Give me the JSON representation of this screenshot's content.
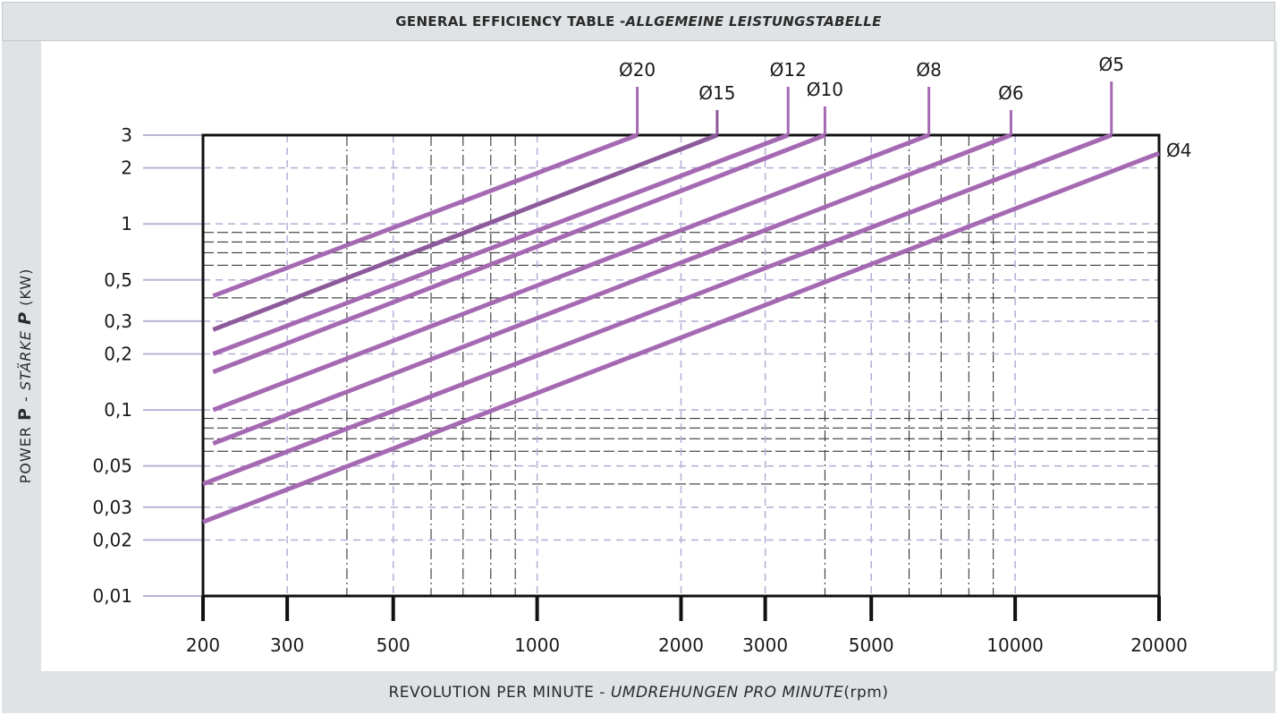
{
  "title": {
    "main": "GENERAL EFFICIENCY TABLE - ",
    "italic": "ALLGEMEINE LEISTUNGSTABELLE"
  },
  "axis": {
    "x_label_main": "REVOLUTION PER MINUTE - ",
    "x_label_italic": "UMDREHUNGEN PRO MINUTE",
    "x_label_unit": " (rpm)",
    "y_label_part1": "POWER ",
    "y_label_bold1": "P",
    "y_label_part2": " - ",
    "y_label_italic": "STÄRKE ",
    "y_label_bold2": "P",
    "y_label_unit": " (KW)"
  },
  "colors": {
    "series": "#a569b3",
    "series_dark": "#8c5a9b",
    "grid_dash": "#222222",
    "grid_light": "#b9b2d6",
    "frame": "#111111"
  },
  "chart_data": {
    "type": "line",
    "x_scale": "log",
    "y_scale": "log",
    "xlim": [
      200,
      20000
    ],
    "ylim": [
      0.01,
      3
    ],
    "x_ticks": [
      {
        "value": 200,
        "label": "200"
      },
      {
        "value": 300,
        "label": "300"
      },
      {
        "value": 500,
        "label": "500"
      },
      {
        "value": 1000,
        "label": "1000"
      },
      {
        "value": 2000,
        "label": "2000"
      },
      {
        "value": 3000,
        "label": "3000"
      },
      {
        "value": 5000,
        "label": "5000"
      },
      {
        "value": 10000,
        "label": "10000"
      },
      {
        "value": 20000,
        "label": "20000"
      }
    ],
    "y_ticks": [
      {
        "value": 3,
        "label": "3"
      },
      {
        "value": 2,
        "label": "2"
      },
      {
        "value": 1,
        "label": "1"
      },
      {
        "value": 0.5,
        "label": "0,5"
      },
      {
        "value": 0.3,
        "label": "0,3"
      },
      {
        "value": 0.2,
        "label": "0,2"
      },
      {
        "value": 0.1,
        "label": "0,1"
      },
      {
        "value": 0.05,
        "label": "0,05"
      },
      {
        "value": 0.03,
        "label": "0,03"
      },
      {
        "value": 0.02,
        "label": "0,02"
      },
      {
        "value": 0.01,
        "label": "0,01"
      }
    ],
    "grid_x_minor": [
      400,
      600,
      700,
      800,
      900,
      4000,
      6000,
      7000,
      8000,
      9000
    ],
    "grid_y_minor": [
      0.4,
      0.6,
      0.7,
      0.8,
      0.9,
      0.04,
      0.06,
      0.07,
      0.08,
      0.09
    ],
    "series": [
      {
        "name": "Ø20",
        "x": [
          210,
          1620
        ],
        "y": [
          0.41,
          3
        ]
      },
      {
        "name": "Ø15",
        "x": [
          210,
          2380
        ],
        "y": [
          0.27,
          3
        ]
      },
      {
        "name": "Ø12",
        "x": [
          210,
          3350
        ],
        "y": [
          0.2,
          3
        ]
      },
      {
        "name": "Ø10",
        "x": [
          210,
          4000
        ],
        "y": [
          0.16,
          3
        ]
      },
      {
        "name": "Ø8",
        "x": [
          210,
          6600
        ],
        "y": [
          0.1,
          3
        ]
      },
      {
        "name": "Ø6",
        "x": [
          210,
          9800
        ],
        "y": [
          0.066,
          3
        ]
      },
      {
        "name": "Ø5",
        "x": [
          200,
          15900
        ],
        "y": [
          0.04,
          3
        ]
      },
      {
        "name": "Ø4",
        "x": [
          200,
          20000
        ],
        "y": [
          0.025,
          2.4
        ]
      }
    ]
  }
}
